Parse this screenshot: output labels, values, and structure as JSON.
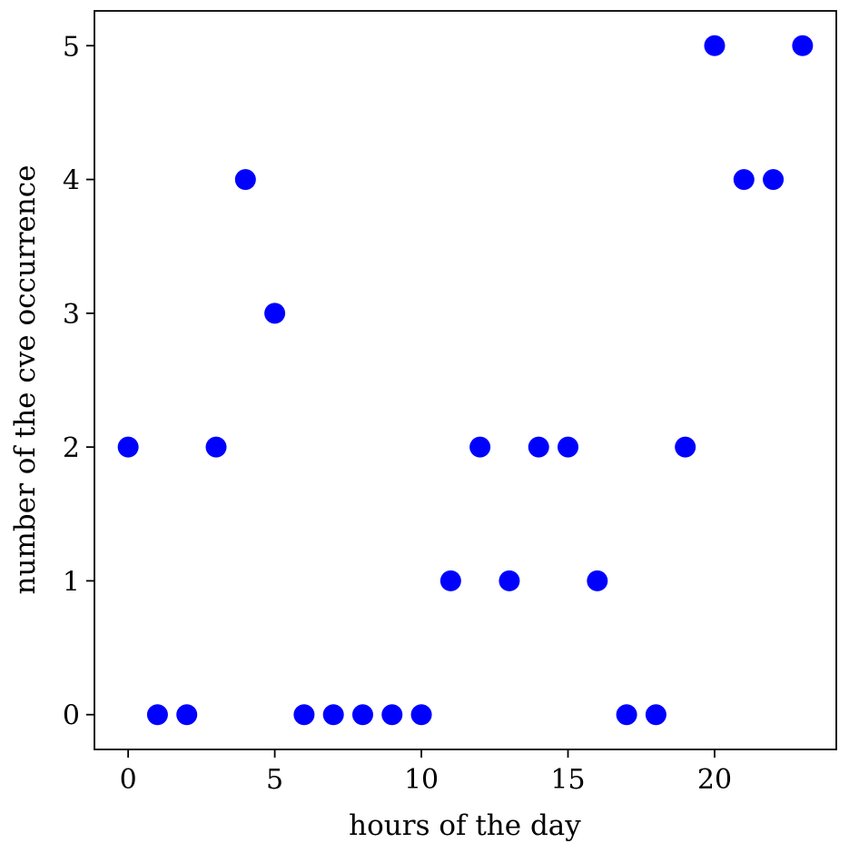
{
  "chart_data": {
    "type": "scatter",
    "title": "",
    "xlabel": "hours of the day",
    "ylabel": "number of the cve occurrence",
    "xlim": [
      -1.15,
      24.15
    ],
    "ylim": [
      -0.26,
      5.26
    ],
    "x_ticks": [
      0,
      5,
      10,
      15,
      20
    ],
    "y_ticks": [
      0,
      1,
      2,
      3,
      4,
      5
    ],
    "grid": false,
    "legend": "none",
    "marker_color": "#0000ff",
    "series": [
      {
        "x": [
          0,
          1,
          2,
          3,
          4,
          5,
          6,
          7,
          8,
          9,
          10,
          11,
          12,
          13,
          14,
          15,
          16,
          17,
          18,
          19,
          20,
          21,
          22,
          23
        ],
        "y": [
          2,
          0,
          0,
          2,
          4,
          3,
          0,
          0,
          0,
          0,
          0,
          1,
          2,
          1,
          2,
          2,
          1,
          0,
          0,
          2,
          5,
          4,
          4,
          5
        ]
      }
    ]
  }
}
